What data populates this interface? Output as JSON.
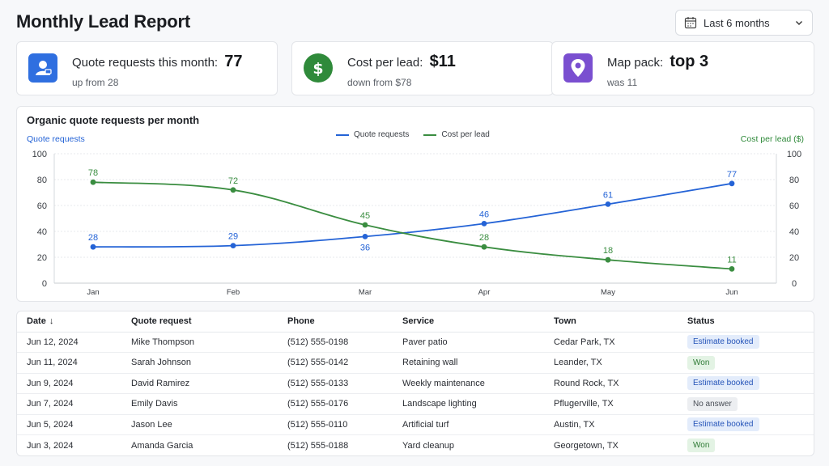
{
  "header": {
    "title": "Monthly Lead Report",
    "range_label": "Last 6 months"
  },
  "kpis": [
    {
      "label": "Quote requests this month:",
      "value": "77",
      "sub": "up from 28",
      "icon": "user-card-icon",
      "color": "#2f6fe0"
    },
    {
      "label": "Cost per lead:",
      "value": "$11",
      "sub": "down from $78",
      "icon": "dollar-icon",
      "color": "#2f8a3a"
    },
    {
      "label": "Map pack:",
      "value": "top 3",
      "sub": "was 11",
      "icon": "map-pin-icon",
      "color": "#7a4fd0"
    }
  ],
  "chart": {
    "title": "Organic quote requests per month",
    "left_axis_label": "Quote requests",
    "right_axis_label": "Cost per lead ($)",
    "legend": [
      "Quote requests",
      "Cost per lead"
    ]
  },
  "chart_data": {
    "type": "line",
    "categories": [
      "Jan",
      "Feb",
      "Mar",
      "Apr",
      "May",
      "Jun"
    ],
    "series": [
      {
        "name": "Quote requests",
        "axis": "left",
        "color": "#2463d6",
        "values": [
          28,
          29,
          36,
          46,
          61,
          77
        ]
      },
      {
        "name": "Cost per lead",
        "axis": "right",
        "color": "#3a8d40",
        "values": [
          78,
          72,
          45,
          28,
          18,
          11
        ]
      }
    ],
    "ylim": [
      0,
      100
    ],
    "y_ticks": [
      0,
      20,
      40,
      60,
      80,
      100
    ],
    "grid": true,
    "legend_position": "top-center"
  },
  "table": {
    "columns": [
      "Date",
      "Quote request",
      "Phone",
      "Service",
      "Town",
      "Status"
    ],
    "sort_indicator": "↓",
    "rows": [
      {
        "date": "Jun 12, 2024",
        "name": "Mike Thompson",
        "phone": "(512) 555-0198",
        "service": "Paver patio",
        "town": "Cedar Park, TX",
        "status": "Estimate booked"
      },
      {
        "date": "Jun 11, 2024",
        "name": "Sarah Johnson",
        "phone": "(512) 555-0142",
        "service": "Retaining wall",
        "town": "Leander, TX",
        "status": "Won"
      },
      {
        "date": "Jun 9, 2024",
        "name": "David Ramirez",
        "phone": "(512) 555-0133",
        "service": "Weekly maintenance",
        "town": "Round Rock, TX",
        "status": "Estimate booked"
      },
      {
        "date": "Jun 7, 2024",
        "name": "Emily Davis",
        "phone": "(512) 555-0176",
        "service": "Landscape lighting",
        "town": "Pflugerville, TX",
        "status": "No answer"
      },
      {
        "date": "Jun 5, 2024",
        "name": "Jason Lee",
        "phone": "(512) 555-0110",
        "service": "Artificial turf",
        "town": "Austin, TX",
        "status": "Estimate booked"
      },
      {
        "date": "Jun 3, 2024",
        "name": "Amanda Garcia",
        "phone": "(512) 555-0188",
        "service": "Yard cleanup",
        "town": "Georgetown, TX",
        "status": "Won"
      }
    ],
    "status_colors": {
      "Estimate booked": {
        "bg": "#e3ecfb",
        "fg": "#2453b8"
      },
      "Won": {
        "bg": "#e3f3e4",
        "fg": "#2d7a34"
      },
      "No answer": {
        "bg": "#eceef1",
        "fg": "#4a4f57"
      }
    }
  }
}
